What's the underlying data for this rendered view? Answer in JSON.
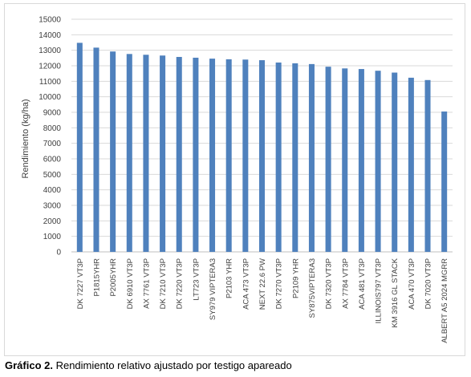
{
  "chart_data": {
    "type": "bar",
    "title": "",
    "xlabel": "",
    "ylabel": "Rendimiento (kg/ha)",
    "ylim": [
      0,
      15000
    ],
    "yticks": [
      0,
      1000,
      2000,
      3000,
      4000,
      5000,
      6000,
      7000,
      8000,
      9000,
      10000,
      11000,
      12000,
      13000,
      14000,
      15000
    ],
    "grid": true,
    "legend": "none",
    "bar_color": "#4f81bd",
    "grid_color": "#d9d9d9",
    "categories": [
      "DK 7227 VT3P",
      "P1815YHR",
      "P2005YHR",
      "DK 6910 VT3P",
      "AX 7761 VT3P",
      "DK 7210 VT3P",
      "DK 7220 VT3P",
      "LT723 VT3P",
      "SY979 VIPTERA3",
      "P2103 YHR",
      "ACA 473 VT3P",
      "NEXT 22.6 PW",
      "DK 7270 VT3P",
      "P2109 YHR",
      "SY875VIPTERA3",
      "DK 7320 VT3P",
      "AX 7784 VT3P",
      "ACA 481 VT3P",
      "ILLINOIS797 VT3P",
      "KM 3916 GL STACK",
      "ACA 470 VT3P",
      "DK 7020 VT3P",
      "ALBERT A5 2024 MGRR"
    ],
    "values": [
      13480,
      13170,
      12920,
      12760,
      12710,
      12660,
      12570,
      12520,
      12460,
      12420,
      12400,
      12360,
      12210,
      12160,
      12110,
      11940,
      11830,
      11790,
      11680,
      11560,
      11230,
      11080,
      9050
    ]
  },
  "caption": {
    "label": "Gráfico 2.",
    "text": " Rendimiento relativo ajustado por testigo apareado"
  }
}
